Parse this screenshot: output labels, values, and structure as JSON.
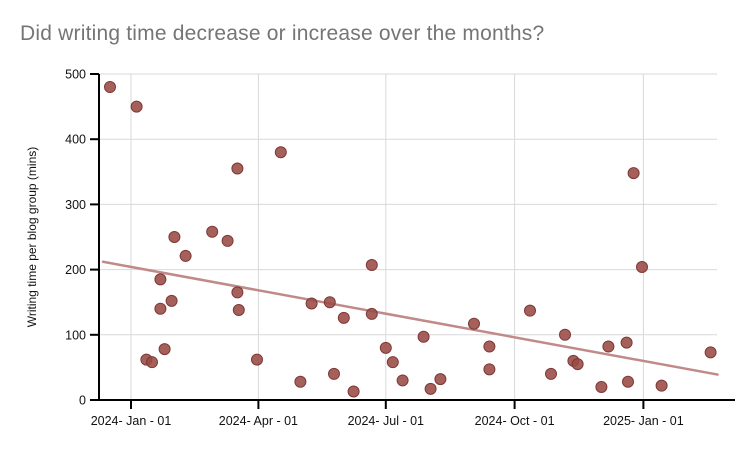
{
  "chart_data": {
    "type": "scatter",
    "title": "Did writing time decrease or increase over the months?",
    "xlabel": "",
    "ylabel": "Writing time per blog group (mins)",
    "x_unit": "days since 2024-01-01",
    "xlim": [
      -23,
      419
    ],
    "ylim": [
      0,
      500
    ],
    "grid": true,
    "legend": "none",
    "y_ticks": [
      0,
      100,
      200,
      300,
      400,
      500
    ],
    "x_ticks": [
      {
        "d": 0,
        "label": "2024- Jan - 01"
      },
      {
        "d": 91,
        "label": "2024- Apr - 01"
      },
      {
        "d": 182,
        "label": "2024- Jul - 01"
      },
      {
        "d": 274,
        "label": "2024- Oct - 01"
      },
      {
        "d": 366,
        "label": "2025- Jan - 01"
      }
    ],
    "points": [
      [
        -15,
        480
      ],
      [
        4,
        450
      ],
      [
        11,
        62
      ],
      [
        15,
        58
      ],
      [
        21,
        185
      ],
      [
        21,
        140
      ],
      [
        24,
        78
      ],
      [
        29,
        152
      ],
      [
        31,
        250
      ],
      [
        39,
        221
      ],
      [
        58,
        258
      ],
      [
        69,
        244
      ],
      [
        76,
        355
      ],
      [
        76,
        165
      ],
      [
        77,
        138
      ],
      [
        90,
        62
      ],
      [
        107,
        380
      ],
      [
        121,
        28
      ],
      [
        129,
        148
      ],
      [
        142,
        150
      ],
      [
        145,
        40
      ],
      [
        152,
        126
      ],
      [
        159,
        13
      ],
      [
        172,
        207
      ],
      [
        172,
        132
      ],
      [
        182,
        80
      ],
      [
        187,
        58
      ],
      [
        194,
        30
      ],
      [
        209,
        97
      ],
      [
        214,
        17
      ],
      [
        221,
        32
      ],
      [
        245,
        117
      ],
      [
        256,
        82
      ],
      [
        256,
        47
      ],
      [
        285,
        137
      ],
      [
        300,
        40
      ],
      [
        310,
        100
      ],
      [
        316,
        60
      ],
      [
        319,
        55
      ],
      [
        336,
        20
      ],
      [
        341,
        82
      ],
      [
        354,
        88
      ],
      [
        355,
        28
      ],
      [
        359,
        348
      ],
      [
        365,
        204
      ],
      [
        379,
        22
      ],
      [
        414,
        73
      ]
    ],
    "trend_line": {
      "from": [
        -20,
        212
      ],
      "to": [
        419,
        39
      ]
    },
    "colors": {
      "point_fill": "#9a4a46",
      "point_stroke": "#7d3936",
      "trend": "#c08a88",
      "grid": "#d9d9d9",
      "axis": "#000000",
      "title_text": "#757575",
      "tick_text": "#111111"
    }
  }
}
